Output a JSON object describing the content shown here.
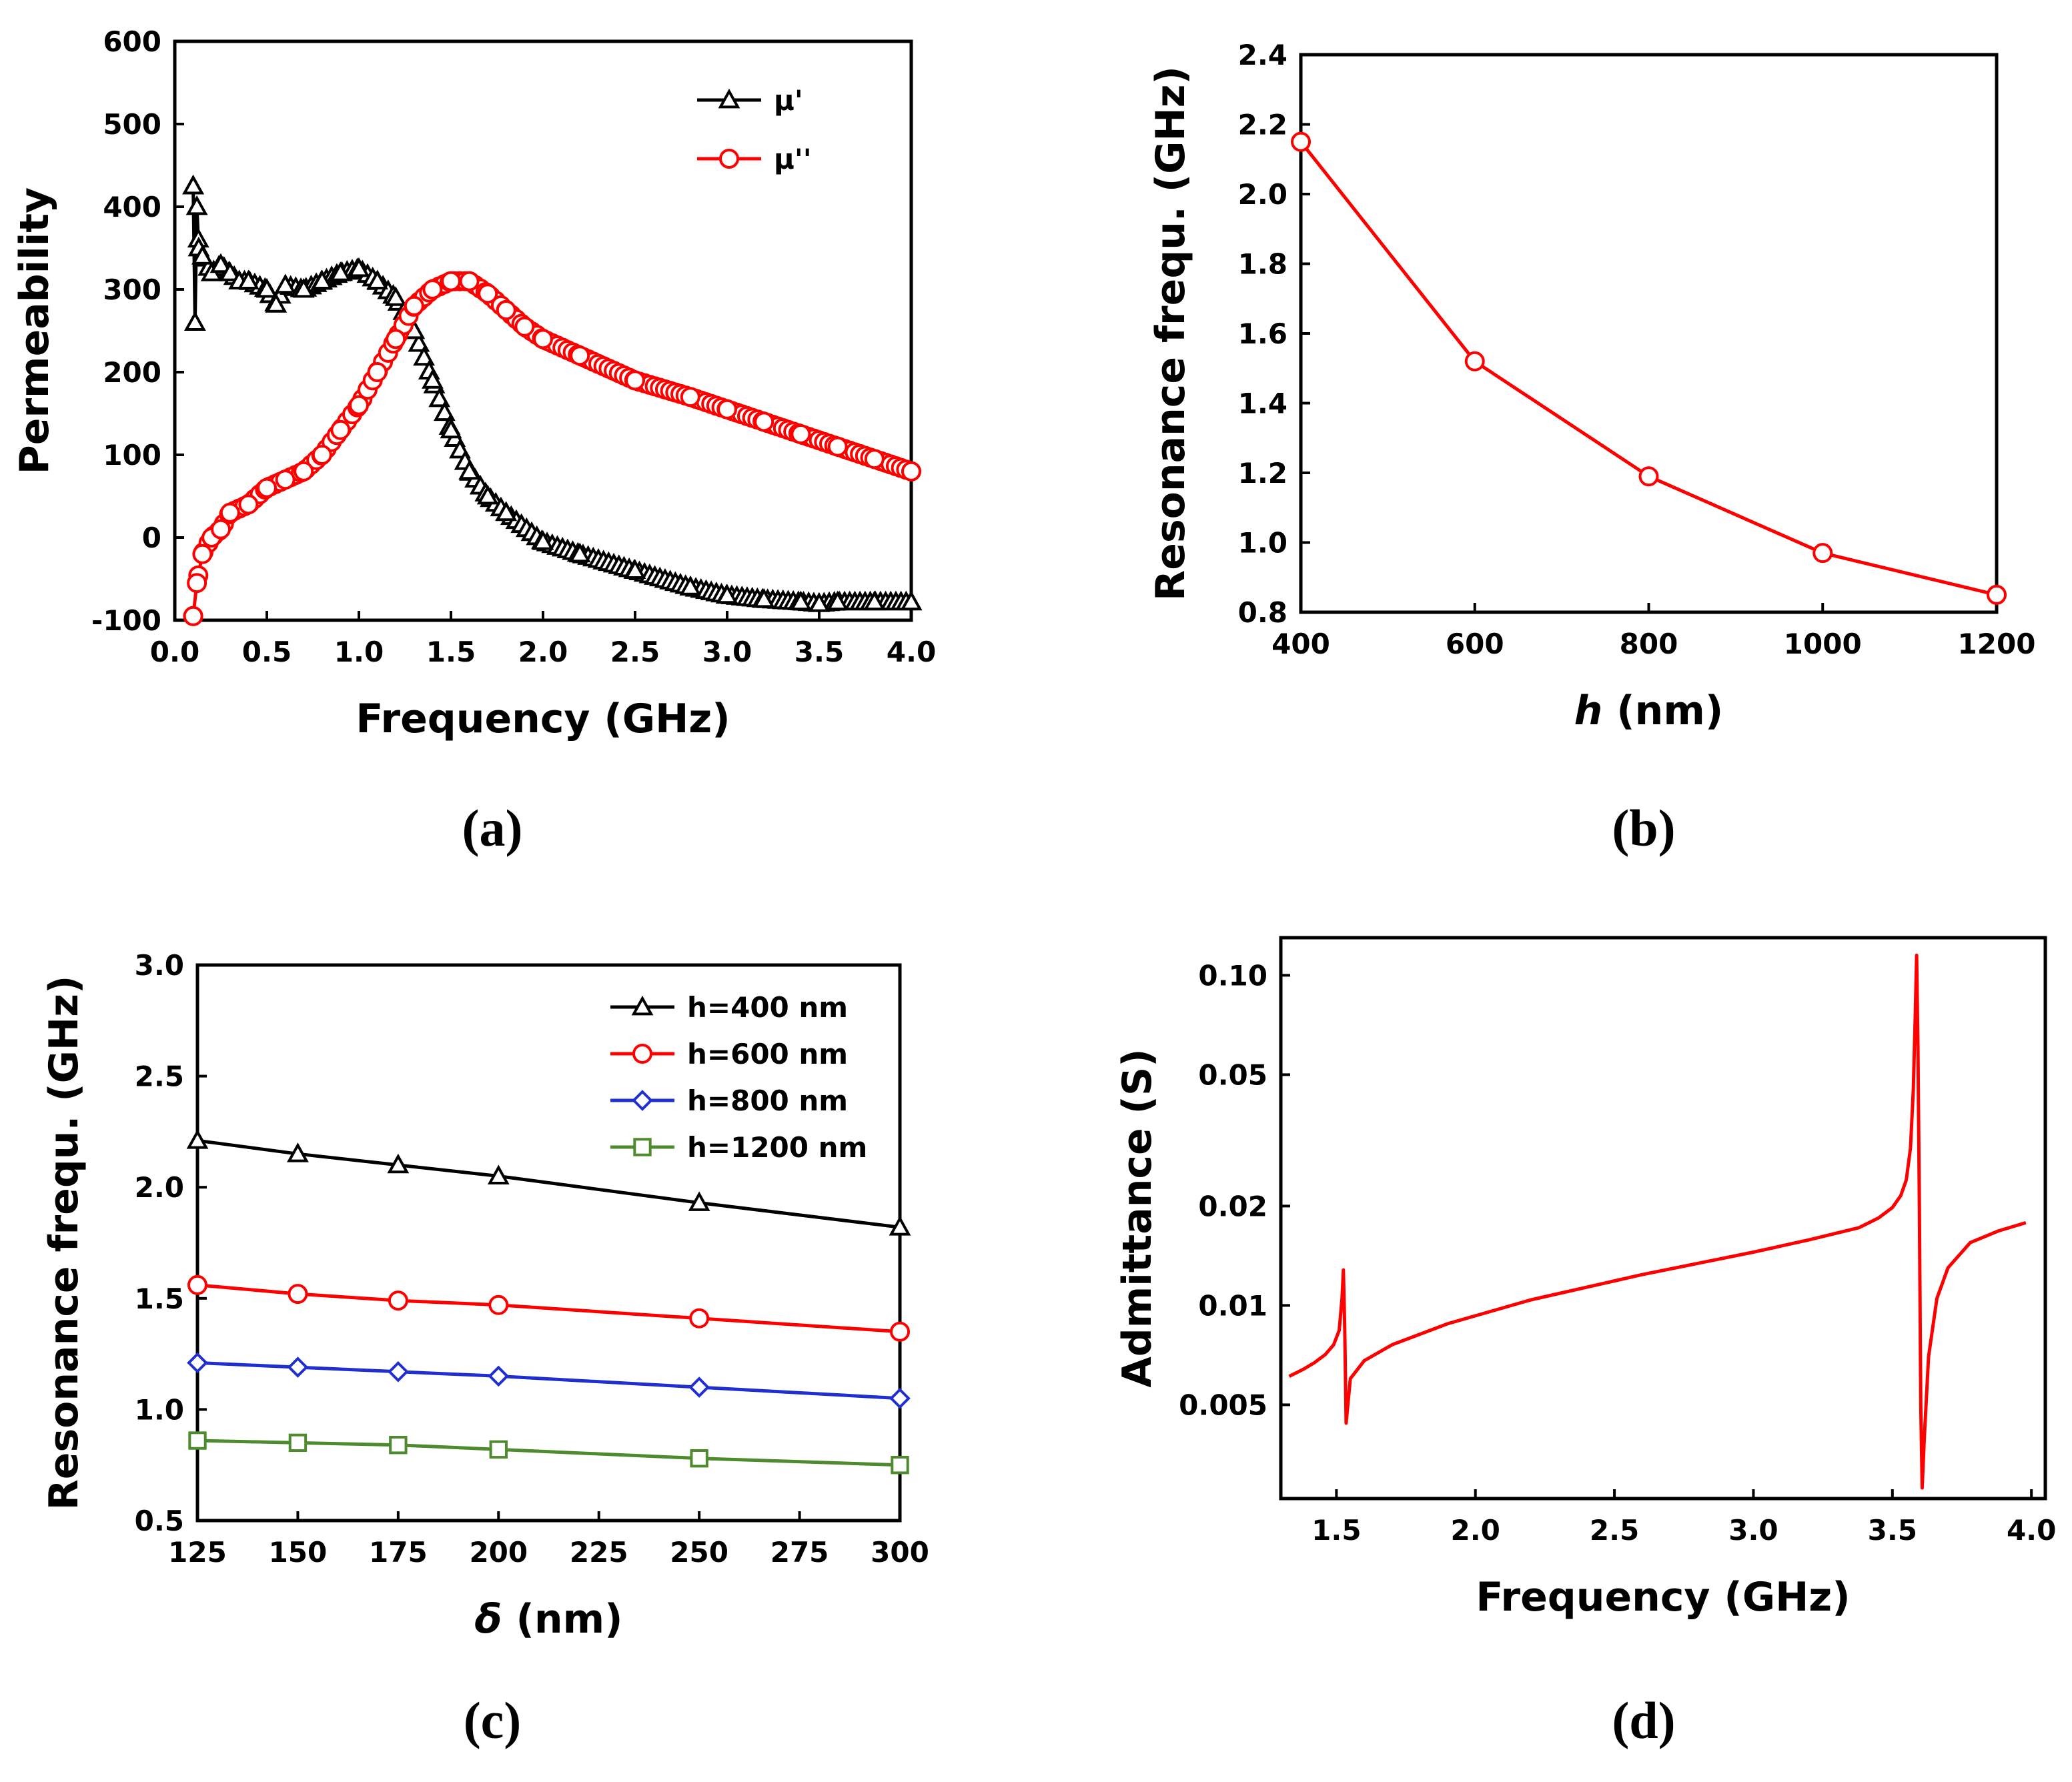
{
  "chart_data": [
    {
      "id": "a",
      "panel_label": "(a)",
      "type": "line",
      "xlabel": "Frequency (GHz)",
      "ylabel": "Permeability",
      "xlim": [
        0.0,
        4.0
      ],
      "ylim": [
        -100,
        600
      ],
      "xticks": [
        "0.0",
        "0.5",
        "1.0",
        "1.5",
        "2.0",
        "2.5",
        "3.0",
        "3.5",
        "4.0"
      ],
      "yticks": [
        "-100",
        "0",
        "100",
        "200",
        "300",
        "400",
        "500",
        "600"
      ],
      "legend": "top-right",
      "series": [
        {
          "name": "μ'",
          "color": "#000000",
          "marker": "triangle",
          "x": [
            0.1,
            0.11,
            0.12,
            0.13,
            0.15,
            0.2,
            0.25,
            0.3,
            0.35,
            0.4,
            0.5,
            0.55,
            0.6,
            0.7,
            0.8,
            0.9,
            1.0,
            1.1,
            1.2,
            1.3,
            1.4,
            1.5,
            1.6,
            1.7,
            1.8,
            2.0,
            2.2,
            2.5,
            2.8,
            3.0,
            3.2,
            3.4,
            3.5,
            3.6,
            3.8,
            4.0
          ],
          "y": [
            425,
            260,
            400,
            350,
            340,
            320,
            330,
            320,
            310,
            310,
            300,
            282,
            305,
            300,
            310,
            320,
            325,
            310,
            290,
            250,
            190,
            130,
            80,
            50,
            30,
            -5,
            -20,
            -40,
            -60,
            -70,
            -75,
            -78,
            -80,
            -78,
            -78,
            -78
          ]
        },
        {
          "name": "μ''",
          "color": "#ff0000",
          "marker": "circle",
          "x": [
            0.1,
            0.12,
            0.15,
            0.2,
            0.25,
            0.3,
            0.4,
            0.5,
            0.6,
            0.7,
            0.8,
            0.9,
            1.0,
            1.1,
            1.2,
            1.3,
            1.4,
            1.5,
            1.6,
            1.7,
            1.8,
            1.9,
            2.0,
            2.2,
            2.5,
            2.8,
            3.0,
            3.2,
            3.4,
            3.6,
            3.8,
            4.0
          ],
          "y": [
            -95,
            -55,
            -20,
            0,
            10,
            30,
            40,
            60,
            70,
            80,
            100,
            130,
            160,
            200,
            240,
            280,
            300,
            310,
            310,
            295,
            275,
            255,
            240,
            220,
            190,
            170,
            155,
            140,
            125,
            110,
            95,
            80
          ]
        }
      ]
    },
    {
      "id": "b",
      "panel_label": "(b)",
      "type": "line",
      "xlabel_italic": "h",
      "xlabel_rest": " (nm)",
      "ylabel": "Resonance frequ. (GHz)",
      "xlim": [
        400,
        1200
      ],
      "ylim": [
        0.8,
        2.4
      ],
      "xticks": [
        "400",
        "600",
        "800",
        "1000",
        "1200"
      ],
      "yticks": [
        "0.8",
        "1.0",
        "1.2",
        "1.4",
        "1.6",
        "1.8",
        "2.0",
        "2.2",
        "2.4"
      ],
      "series": [
        {
          "name": "resonance",
          "color": "#ff0000",
          "marker": "circle",
          "x": [
            400,
            600,
            800,
            1000,
            1200
          ],
          "y": [
            2.15,
            1.52,
            1.19,
            0.97,
            0.85
          ]
        }
      ]
    },
    {
      "id": "c",
      "panel_label": "(c)",
      "type": "line",
      "xlabel_italic": "δ",
      "xlabel_rest": " (nm)",
      "ylabel": "Resonance frequ. (GHz)",
      "xlim": [
        125,
        300
      ],
      "ylim": [
        0.5,
        3.0
      ],
      "xticks": [
        "125",
        "150",
        "175",
        "200",
        "225",
        "250",
        "275",
        "300"
      ],
      "yticks": [
        "0.5",
        "1.0",
        "1.5",
        "2.0",
        "2.5",
        "3.0"
      ],
      "legend": "top-right",
      "series": [
        {
          "name": "h=400 nm",
          "color": "#000000",
          "marker": "triangle",
          "x": [
            125,
            150,
            175,
            200,
            250,
            300
          ],
          "y": [
            2.21,
            2.15,
            2.1,
            2.05,
            1.93,
            1.82
          ]
        },
        {
          "name": "h=600 nm",
          "color": "#ff0000",
          "marker": "circle",
          "x": [
            125,
            150,
            175,
            200,
            250,
            300
          ],
          "y": [
            1.56,
            1.52,
            1.49,
            1.47,
            1.41,
            1.35
          ]
        },
        {
          "name": "h=800 nm",
          "color": "#1f2fd0",
          "marker": "diamond",
          "x": [
            125,
            150,
            175,
            200,
            250,
            300
          ],
          "y": [
            1.21,
            1.19,
            1.17,
            1.15,
            1.1,
            1.05
          ]
        },
        {
          "name": "h=1200 nm",
          "color": "#4e8a2e",
          "marker": "square",
          "x": [
            125,
            150,
            175,
            200,
            250,
            300
          ],
          "y": [
            0.86,
            0.85,
            0.84,
            0.82,
            0.78,
            0.75
          ]
        }
      ]
    },
    {
      "id": "d",
      "panel_label": "(d)",
      "type": "line",
      "scale_y": "log",
      "xlabel": "Frequency (GHz)",
      "ylabel": "Admittance (S)",
      "xlim": [
        1.3,
        4.05
      ],
      "ylim": [
        0.0026,
        0.13
      ],
      "xticks": [
        "1.5",
        "2.0",
        "2.5",
        "3.0",
        "3.5",
        "4.0"
      ],
      "xtick_values": [
        1.5,
        2.0,
        2.5,
        3.0,
        3.5,
        4.0
      ],
      "yticks": [
        "0.005",
        "0.01",
        "0.02",
        "0.05",
        "0.10"
      ],
      "ytick_values": [
        0.005,
        0.01,
        0.02,
        0.05,
        0.1
      ],
      "series": [
        {
          "name": "admittance",
          "color": "#ff0000",
          "x": [
            1.33,
            1.38,
            1.42,
            1.46,
            1.49,
            1.51,
            1.52,
            1.525,
            1.53,
            1.535,
            1.55,
            1.6,
            1.7,
            1.9,
            2.2,
            2.6,
            3.0,
            3.2,
            3.38,
            3.45,
            3.5,
            3.53,
            3.55,
            3.565,
            3.575,
            3.582,
            3.587,
            3.592,
            3.597,
            3.602,
            3.607,
            3.615,
            3.63,
            3.66,
            3.7,
            3.78,
            3.88,
            3.98
          ],
          "y": [
            0.0061,
            0.0064,
            0.0067,
            0.0071,
            0.0076,
            0.0084,
            0.0105,
            0.0128,
            0.0085,
            0.0044,
            0.006,
            0.0068,
            0.0076,
            0.0088,
            0.0104,
            0.0124,
            0.0145,
            0.0158,
            0.0172,
            0.0184,
            0.0198,
            0.0215,
            0.024,
            0.03,
            0.045,
            0.075,
            0.115,
            0.06,
            0.02,
            0.005,
            0.0028,
            0.004,
            0.007,
            0.0105,
            0.013,
            0.0155,
            0.0168,
            0.0178
          ]
        }
      ]
    }
  ]
}
